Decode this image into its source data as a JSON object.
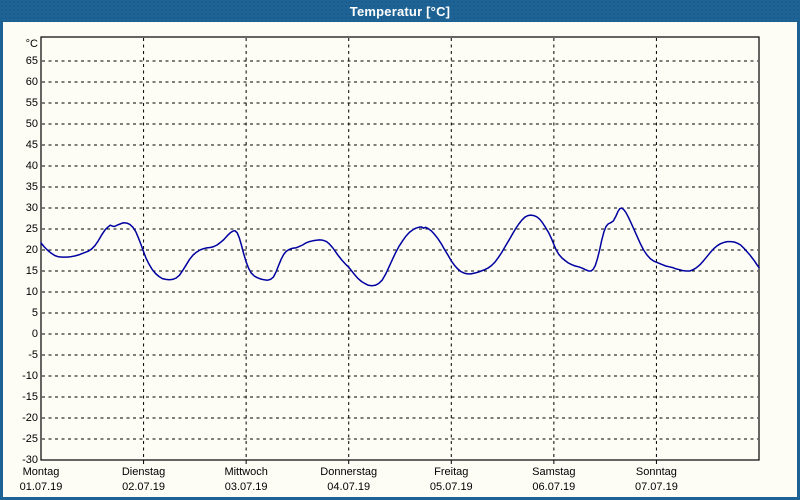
{
  "window": {
    "title": "Temperatur [°C]"
  },
  "colors": {
    "frame": "#1d6396",
    "titlebar": "#1d6396",
    "title_text": "#ffffff",
    "plot_bg": "#fdfdf6",
    "grid": "#000000",
    "axis": "#000000",
    "line": "#0000a0",
    "label": "#000000"
  },
  "chart_data": {
    "type": "line",
    "title": "Temperatur [°C]",
    "y_unit": "°C",
    "ylabel": "",
    "xlabel": "",
    "ylim": [
      -30,
      70
    ],
    "y_tick_step": 5,
    "y_ticks": [
      65,
      60,
      55,
      50,
      45,
      40,
      35,
      30,
      25,
      20,
      15,
      10,
      5,
      0,
      -5,
      -10,
      -15,
      -20,
      -25,
      -30
    ],
    "grid": "dashed",
    "legend_position": "none",
    "x_range_hours": [
      0,
      168
    ],
    "x_days": [
      {
        "name": "Montag",
        "date": "01.07.19"
      },
      {
        "name": "Dienstag",
        "date": "02.07.19"
      },
      {
        "name": "Mittwoch",
        "date": "03.07.19"
      },
      {
        "name": "Donnerstag",
        "date": "04.07.19"
      },
      {
        "name": "Freitag",
        "date": "05.07.19"
      },
      {
        "name": "Samstag",
        "date": "06.07.19"
      },
      {
        "name": "Sonntag",
        "date": "07.07.19"
      }
    ],
    "series": [
      {
        "name": "Temperatur",
        "color": "#0000a0",
        "points": [
          [
            0,
            21.7
          ],
          [
            0.7,
            20.8
          ],
          [
            1.5,
            20.0
          ],
          [
            2.3,
            19.3
          ],
          [
            3.2,
            18.7
          ],
          [
            4,
            18.4
          ],
          [
            5,
            18.3
          ],
          [
            6,
            18.3
          ],
          [
            7,
            18.4
          ],
          [
            8,
            18.6
          ],
          [
            9,
            18.9
          ],
          [
            10,
            19.3
          ],
          [
            11,
            19.7
          ],
          [
            11.8,
            20.2
          ],
          [
            12.6,
            21.0
          ],
          [
            13.4,
            22.2
          ],
          [
            14.2,
            23.6
          ],
          [
            15,
            24.8
          ],
          [
            15.6,
            25.4
          ],
          [
            16.2,
            25.9
          ],
          [
            16.7,
            25.7
          ],
          [
            17.2,
            25.6
          ],
          [
            17.8,
            25.9
          ],
          [
            18.5,
            26.2
          ],
          [
            19.3,
            26.5
          ],
          [
            20.1,
            26.4
          ],
          [
            20.8,
            26.1
          ],
          [
            21.5,
            25.4
          ],
          [
            22.2,
            24.3
          ],
          [
            22.8,
            22.9
          ],
          [
            23.4,
            21.3
          ],
          [
            24,
            19.6
          ],
          [
            24.6,
            18.0
          ],
          [
            25.3,
            16.6
          ],
          [
            26,
            15.4
          ],
          [
            26.8,
            14.4
          ],
          [
            27.6,
            13.7
          ],
          [
            28.4,
            13.2
          ],
          [
            29.2,
            13.0
          ],
          [
            30,
            12.9
          ],
          [
            30.8,
            13.0
          ],
          [
            31.6,
            13.3
          ],
          [
            32.4,
            14.0
          ],
          [
            33.2,
            15.2
          ],
          [
            34,
            16.5
          ],
          [
            34.8,
            17.8
          ],
          [
            35.6,
            18.8
          ],
          [
            36.4,
            19.5
          ],
          [
            37.2,
            20.0
          ],
          [
            38,
            20.3
          ],
          [
            38.8,
            20.5
          ],
          [
            39.6,
            20.6
          ],
          [
            40.4,
            20.8
          ],
          [
            41.2,
            21.2
          ],
          [
            42,
            21.8
          ],
          [
            42.8,
            22.5
          ],
          [
            43.6,
            23.4
          ],
          [
            44.3,
            24.1
          ],
          [
            44.9,
            24.5
          ],
          [
            45.4,
            24.6
          ],
          [
            45.9,
            24.1
          ],
          [
            46.4,
            22.9
          ],
          [
            46.9,
            21.2
          ],
          [
            47.4,
            19.2
          ],
          [
            48,
            17.2
          ],
          [
            48.6,
            15.6
          ],
          [
            49.2,
            14.5
          ],
          [
            49.9,
            13.8
          ],
          [
            50.6,
            13.4
          ],
          [
            51.4,
            13.1
          ],
          [
            52.2,
            12.9
          ],
          [
            53,
            12.8
          ],
          [
            53.7,
            13.0
          ],
          [
            54.4,
            13.6
          ],
          [
            55,
            14.8
          ],
          [
            55.6,
            16.3
          ],
          [
            56.2,
            17.8
          ],
          [
            56.8,
            19.0
          ],
          [
            57.4,
            19.7
          ],
          [
            58,
            20.1
          ],
          [
            58.8,
            20.4
          ],
          [
            59.6,
            20.5
          ],
          [
            60.4,
            20.8
          ],
          [
            61.2,
            21.2
          ],
          [
            62,
            21.7
          ],
          [
            62.8,
            22.0
          ],
          [
            63.6,
            22.2
          ],
          [
            64.4,
            22.3
          ],
          [
            65.2,
            22.4
          ],
          [
            66,
            22.3
          ],
          [
            66.8,
            22.0
          ],
          [
            67.5,
            21.4
          ],
          [
            68.2,
            20.6
          ],
          [
            68.9,
            19.6
          ],
          [
            69.6,
            18.6
          ],
          [
            70.4,
            17.6
          ],
          [
            71.2,
            16.7
          ],
          [
            72,
            15.9
          ],
          [
            72.7,
            15.0
          ],
          [
            73.4,
            14.1
          ],
          [
            74.2,
            13.2
          ],
          [
            75,
            12.5
          ],
          [
            75.8,
            12.0
          ],
          [
            76.6,
            11.6
          ],
          [
            77.4,
            11.5
          ],
          [
            78.2,
            11.6
          ],
          [
            79,
            12.0
          ],
          [
            79.8,
            12.8
          ],
          [
            80.6,
            14.2
          ],
          [
            81.4,
            15.9
          ],
          [
            82.2,
            17.7
          ],
          [
            83,
            19.4
          ],
          [
            83.8,
            20.9
          ],
          [
            84.6,
            22.2
          ],
          [
            85.4,
            23.3
          ],
          [
            86.2,
            24.2
          ],
          [
            87,
            24.8
          ],
          [
            87.7,
            25.2
          ],
          [
            88.4,
            25.4
          ],
          [
            89,
            25.5
          ],
          [
            89.5,
            25.2
          ],
          [
            90,
            25.4
          ],
          [
            90.6,
            25.1
          ],
          [
            91.3,
            24.6
          ],
          [
            92,
            23.8
          ],
          [
            92.8,
            22.8
          ],
          [
            93.6,
            21.6
          ],
          [
            94.4,
            20.2
          ],
          [
            95.2,
            18.8
          ],
          [
            96,
            17.4
          ],
          [
            96.7,
            16.4
          ],
          [
            97.4,
            15.6
          ],
          [
            98.2,
            14.9
          ],
          [
            99,
            14.5
          ],
          [
            99.8,
            14.3
          ],
          [
            100.6,
            14.3
          ],
          [
            101.4,
            14.5
          ],
          [
            102.2,
            14.7
          ],
          [
            103,
            15.0
          ],
          [
            103.8,
            15.3
          ],
          [
            104.6,
            15.7
          ],
          [
            105.4,
            16.3
          ],
          [
            106.2,
            17.1
          ],
          [
            107,
            18.2
          ],
          [
            107.8,
            19.4
          ],
          [
            108.6,
            20.8
          ],
          [
            109.4,
            22.2
          ],
          [
            110.2,
            23.6
          ],
          [
            111,
            25.0
          ],
          [
            111.8,
            26.2
          ],
          [
            112.5,
            27.1
          ],
          [
            113.2,
            27.8
          ],
          [
            113.9,
            28.2
          ],
          [
            114.6,
            28.3
          ],
          [
            115.3,
            28.2
          ],
          [
            116,
            27.9
          ],
          [
            116.7,
            27.3
          ],
          [
            117.4,
            26.4
          ],
          [
            118.1,
            25.3
          ],
          [
            118.8,
            24.1
          ],
          [
            119.4,
            22.8
          ],
          [
            120,
            21.3
          ],
          [
            120.6,
            19.9
          ],
          [
            121.2,
            18.9
          ],
          [
            121.9,
            18.1
          ],
          [
            122.6,
            17.5
          ],
          [
            123.4,
            16.9
          ],
          [
            124.2,
            16.5
          ],
          [
            125,
            16.2
          ],
          [
            125.8,
            16.0
          ],
          [
            126.6,
            15.7
          ],
          [
            127.4,
            15.3
          ],
          [
            128.1,
            15.0
          ],
          [
            128.7,
            15.0
          ],
          [
            129.2,
            15.4
          ],
          [
            129.7,
            16.3
          ],
          [
            130.2,
            17.9
          ],
          [
            130.7,
            20.0
          ],
          [
            131.2,
            22.3
          ],
          [
            131.7,
            24.3
          ],
          [
            132.2,
            25.6
          ],
          [
            132.7,
            26.2
          ],
          [
            133.3,
            26.5
          ],
          [
            133.9,
            26.9
          ],
          [
            134.5,
            28.0
          ],
          [
            135,
            29.2
          ],
          [
            135.4,
            29.8
          ],
          [
            135.8,
            30.0
          ],
          [
            136.3,
            29.7
          ],
          [
            136.8,
            29.0
          ],
          [
            137.4,
            27.9
          ],
          [
            138,
            26.6
          ],
          [
            138.7,
            25.0
          ],
          [
            139.4,
            23.4
          ],
          [
            140.2,
            21.6
          ],
          [
            141,
            20.0
          ],
          [
            141.8,
            18.8
          ],
          [
            142.6,
            17.9
          ],
          [
            143.3,
            17.4
          ],
          [
            144,
            17.1
          ],
          [
            144.7,
            16.8
          ],
          [
            145.4,
            16.5
          ],
          [
            146.2,
            16.2
          ],
          [
            147,
            16.0
          ],
          [
            147.8,
            15.8
          ],
          [
            148.6,
            15.5
          ],
          [
            149.4,
            15.3
          ],
          [
            150.2,
            15.1
          ],
          [
            151,
            15.0
          ],
          [
            151.8,
            15.0
          ],
          [
            152.6,
            15.3
          ],
          [
            153.4,
            15.8
          ],
          [
            154.2,
            16.5
          ],
          [
            155,
            17.4
          ],
          [
            155.8,
            18.4
          ],
          [
            156.6,
            19.4
          ],
          [
            157.4,
            20.3
          ],
          [
            158.2,
            21.0
          ],
          [
            159,
            21.5
          ],
          [
            159.8,
            21.8
          ],
          [
            160.6,
            22.0
          ],
          [
            161.4,
            22.0
          ],
          [
            162.2,
            21.9
          ],
          [
            163,
            21.6
          ],
          [
            163.7,
            21.2
          ],
          [
            164.4,
            20.5
          ],
          [
            165.1,
            19.7
          ],
          [
            165.8,
            18.9
          ],
          [
            166.4,
            18.1
          ],
          [
            167,
            17.3
          ],
          [
            167.5,
            16.5
          ],
          [
            168,
            15.8
          ]
        ]
      }
    ]
  }
}
